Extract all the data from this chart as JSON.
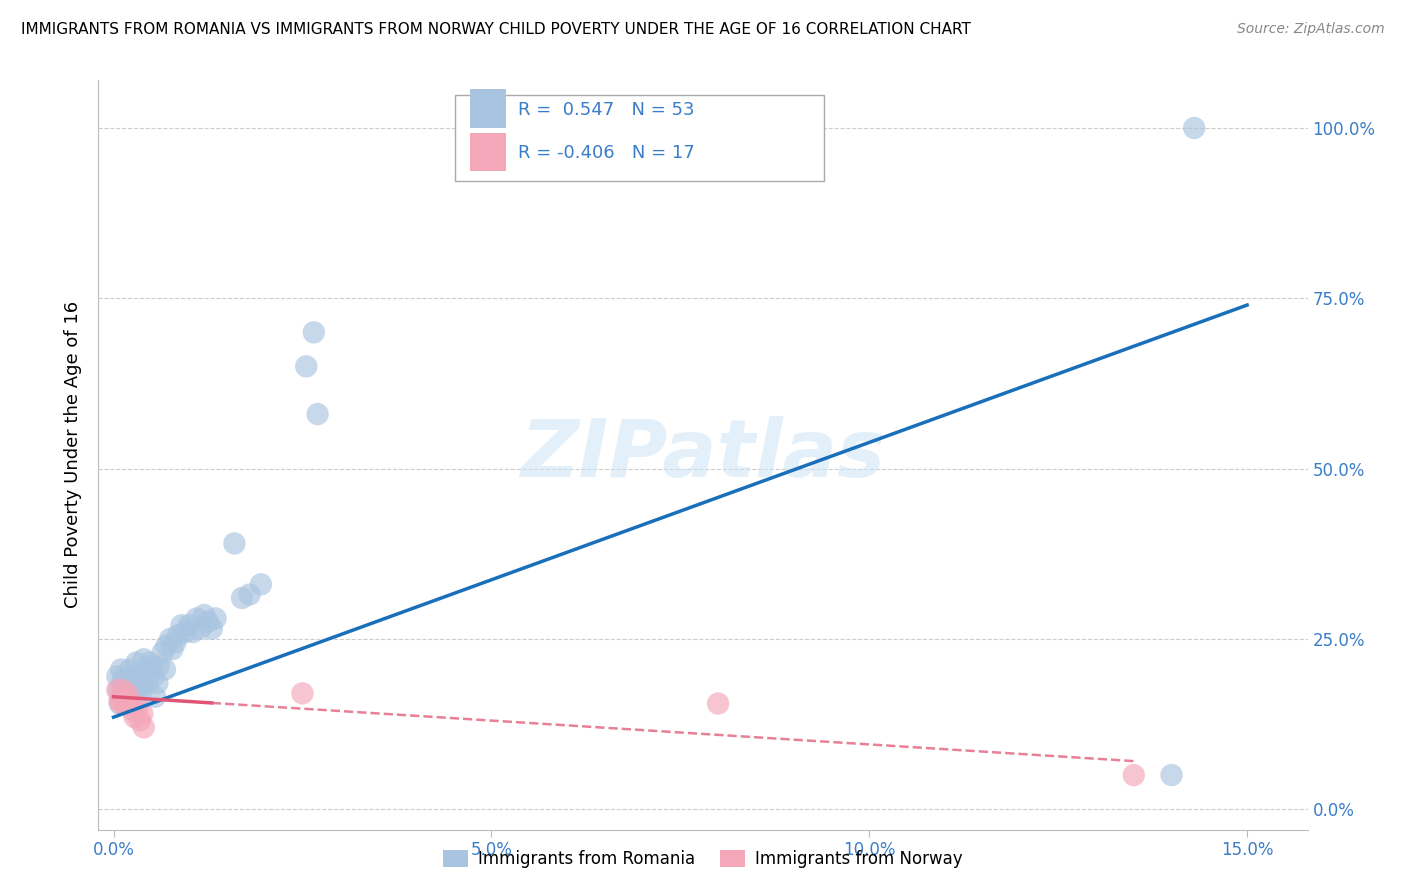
{
  "title": "IMMIGRANTS FROM ROMANIA VS IMMIGRANTS FROM NORWAY CHILD POVERTY UNDER THE AGE OF 16 CORRELATION CHART",
  "source": "Source: ZipAtlas.com",
  "xlabel_ticks": [
    "0.0%",
    "5.0%",
    "10.0%",
    "15.0%"
  ],
  "xlabel_vals": [
    0.0,
    0.05,
    0.1,
    0.15
  ],
  "ylabel_ticks": [
    "0.0%",
    "25.0%",
    "50.0%",
    "75.0%",
    "100.0%"
  ],
  "ylabel_vals": [
    0.0,
    0.25,
    0.5,
    0.75,
    1.0
  ],
  "ylabel_label": "Child Poverty Under the Age of 16",
  "romania_R": 0.547,
  "romania_N": 53,
  "norway_R": -0.406,
  "norway_N": 17,
  "romania_color": "#a8c4e0",
  "norway_color": "#f4a7b9",
  "trend_romania_color": "#1a6fba",
  "trend_norway_color": "#e05575",
  "legend_romania": "Immigrants from Romania",
  "legend_norway": "Immigrants from Norway",
  "watermark": "ZIPatlas",
  "xlim": [
    -0.002,
    0.158
  ],
  "ylim": [
    -0.03,
    1.07
  ],
  "romania_scatter": [
    [
      0.0005,
      0.195
    ],
    [
      0.0007,
      0.175
    ],
    [
      0.0008,
      0.155
    ],
    [
      0.001,
      0.205
    ],
    [
      0.0012,
      0.19
    ],
    [
      0.0013,
      0.165
    ],
    [
      0.0015,
      0.185
    ],
    [
      0.0017,
      0.175
    ],
    [
      0.0018,
      0.16
    ],
    [
      0.002,
      0.175
    ],
    [
      0.0022,
      0.205
    ],
    [
      0.0025,
      0.195
    ],
    [
      0.0027,
      0.17
    ],
    [
      0.0028,
      0.16
    ],
    [
      0.003,
      0.215
    ],
    [
      0.0032,
      0.18
    ],
    [
      0.0035,
      0.195
    ],
    [
      0.0037,
      0.175
    ],
    [
      0.004,
      0.22
    ],
    [
      0.0042,
      0.2
    ],
    [
      0.0045,
      0.185
    ],
    [
      0.0048,
      0.215
    ],
    [
      0.005,
      0.21
    ],
    [
      0.0053,
      0.195
    ],
    [
      0.0055,
      0.165
    ],
    [
      0.0058,
      0.185
    ],
    [
      0.006,
      0.21
    ],
    [
      0.0065,
      0.23
    ],
    [
      0.0068,
      0.205
    ],
    [
      0.007,
      0.24
    ],
    [
      0.0075,
      0.25
    ],
    [
      0.0078,
      0.235
    ],
    [
      0.0082,
      0.245
    ],
    [
      0.0085,
      0.255
    ],
    [
      0.009,
      0.27
    ],
    [
      0.0095,
      0.26
    ],
    [
      0.01,
      0.27
    ],
    [
      0.0105,
      0.26
    ],
    [
      0.011,
      0.28
    ],
    [
      0.0115,
      0.265
    ],
    [
      0.012,
      0.285
    ],
    [
      0.0125,
      0.275
    ],
    [
      0.013,
      0.265
    ],
    [
      0.0135,
      0.28
    ],
    [
      0.0255,
      0.65
    ],
    [
      0.0265,
      0.7
    ],
    [
      0.027,
      0.58
    ],
    [
      0.016,
      0.39
    ],
    [
      0.017,
      0.31
    ],
    [
      0.018,
      0.315
    ],
    [
      0.0195,
      0.33
    ],
    [
      0.14,
      0.05
    ],
    [
      0.143,
      1.0
    ]
  ],
  "norway_scatter": [
    [
      0.0005,
      0.175
    ],
    [
      0.0008,
      0.16
    ],
    [
      0.001,
      0.155
    ],
    [
      0.0012,
      0.175
    ],
    [
      0.0015,
      0.155
    ],
    [
      0.0018,
      0.17
    ],
    [
      0.002,
      0.155
    ],
    [
      0.0022,
      0.16
    ],
    [
      0.0025,
      0.145
    ],
    [
      0.0028,
      0.135
    ],
    [
      0.0032,
      0.15
    ],
    [
      0.0035,
      0.13
    ],
    [
      0.0038,
      0.14
    ],
    [
      0.004,
      0.12
    ],
    [
      0.025,
      0.17
    ],
    [
      0.08,
      0.155
    ],
    [
      0.135,
      0.05
    ]
  ],
  "trend_rom_x0": 0.0,
  "trend_rom_y0": 0.135,
  "trend_rom_x1": 0.15,
  "trend_rom_y1": 0.74,
  "trend_nor_x0": 0.0,
  "trend_nor_y0": 0.165,
  "trend_nor_x1": 0.15,
  "trend_nor_y1": 0.06,
  "trend_nor_solid_end": 0.013,
  "trend_nor_dash_start": 0.013,
  "trend_nor_dash_end": 0.135
}
